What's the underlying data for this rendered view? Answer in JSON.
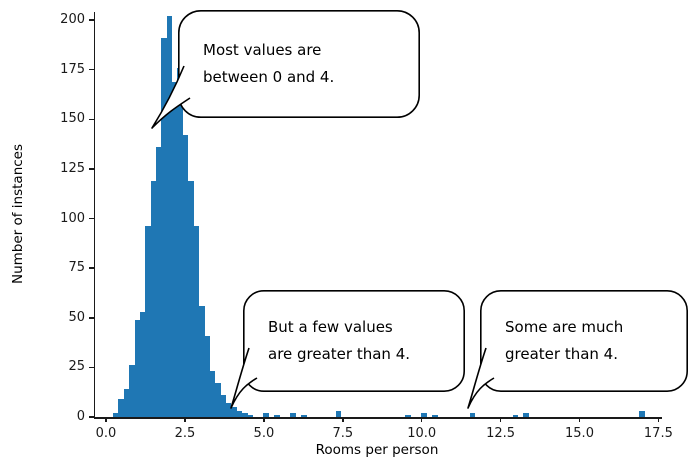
{
  "chart_data": {
    "type": "bar",
    "subtype": "histogram",
    "xlabel": "Rooms per person",
    "ylabel": "Number of instances",
    "bar_color": "#1f77b4",
    "axis_color": "#1a1a1a",
    "grid": false,
    "legend": false,
    "xlim": [
      -0.35,
      17.55
    ],
    "ylim": [
      0,
      204
    ],
    "xticks": [
      0.0,
      2.5,
      5.0,
      7.5,
      10.0,
      12.5,
      15.0,
      17.5
    ],
    "xtick_labels": [
      "0.0",
      "2.5",
      "5.0",
      "7.5",
      "10.0",
      "12.5",
      "15.0",
      "17.5"
    ],
    "yticks": [
      0,
      25,
      50,
      75,
      100,
      125,
      150,
      175,
      200
    ],
    "bin_width": 0.17,
    "bins": [
      [
        0.22,
        2
      ],
      [
        0.39,
        9
      ],
      [
        0.56,
        14
      ],
      [
        0.73,
        26
      ],
      [
        0.9,
        49
      ],
      [
        1.07,
        53
      ],
      [
        1.24,
        96
      ],
      [
        1.41,
        119
      ],
      [
        1.58,
        136
      ],
      [
        1.75,
        191
      ],
      [
        1.92,
        202
      ],
      [
        2.09,
        169
      ],
      [
        2.26,
        176
      ],
      [
        2.43,
        142
      ],
      [
        2.6,
        119
      ],
      [
        2.77,
        96
      ],
      [
        2.94,
        56
      ],
      [
        3.11,
        41
      ],
      [
        3.28,
        23
      ],
      [
        3.45,
        17
      ],
      [
        3.62,
        11
      ],
      [
        3.79,
        7
      ],
      [
        3.96,
        5
      ],
      [
        4.13,
        3
      ],
      [
        4.3,
        2
      ],
      [
        4.47,
        1
      ],
      [
        4.98,
        2
      ],
      [
        5.32,
        1
      ],
      [
        5.83,
        2
      ],
      [
        6.17,
        1
      ],
      [
        7.27,
        3
      ],
      [
        9.48,
        1
      ],
      [
        9.99,
        2
      ],
      [
        10.33,
        1
      ],
      [
        11.52,
        2
      ],
      [
        12.88,
        1
      ],
      [
        13.22,
        2
      ],
      [
        16.88,
        3
      ]
    ],
    "annotations": [
      {
        "text": "Most values are\nbetween 0 and 4."
      },
      {
        "text": "But a few values\nare greater than 4."
      },
      {
        "text": "Some are much\ngreater than 4."
      }
    ]
  }
}
